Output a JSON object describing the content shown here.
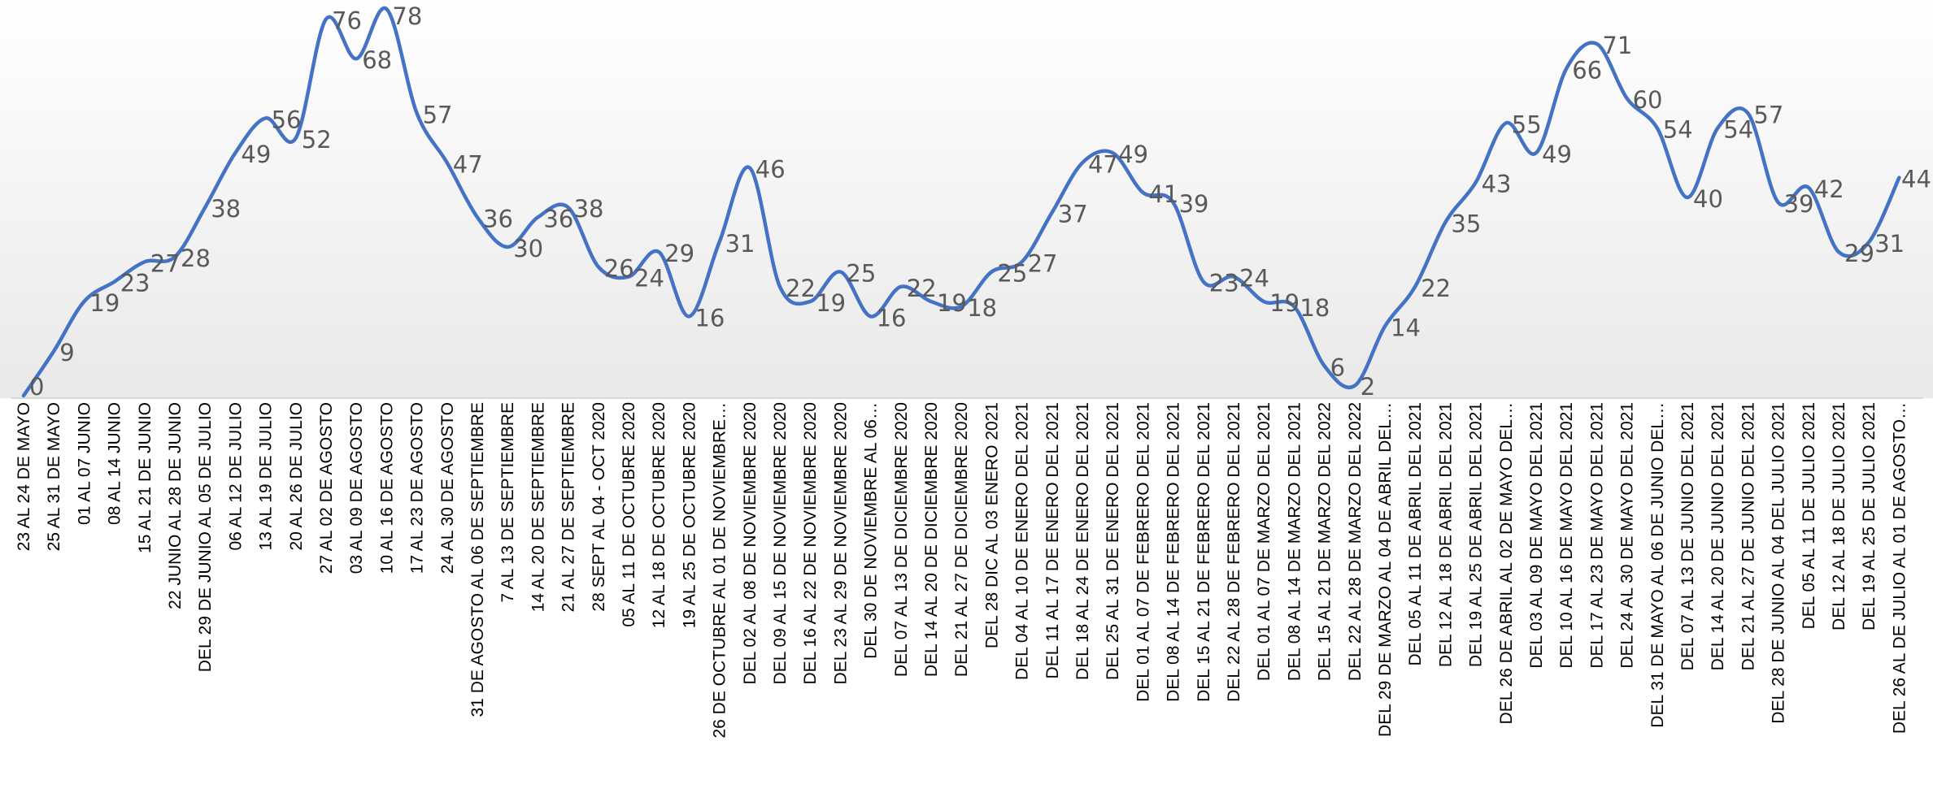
{
  "chart_data": {
    "type": "line",
    "title": "",
    "xlabel": "",
    "ylabel": "",
    "ylim": [
      0,
      80
    ],
    "grid": false,
    "legend": "none",
    "smooth": true,
    "colors": {
      "line": "#4472C4",
      "label": "#595959",
      "axis": "#d9d9d9",
      "bg_top": "#ffffff",
      "bg_bottom": "#e9e9e9"
    },
    "categories": [
      "23 AL 24 DE MAYO",
      "25 AL 31 DE MAYO",
      "01 AL 07 JUNIO",
      "08 AL 14 JUNIO",
      "15 AL 21 DE JUNIO",
      "22 JUNIO AL 28 DE JUNIO",
      "DEL 29 DE JUNIO AL 05 DE JULIO",
      "06 AL 12 DE JULIO",
      "13 AL 19 DE JULIO",
      "20 AL 26 DE JULIO",
      "27 AL 02 DE AGOSTO",
      "03 AL 09 DE AGOSTO",
      "10 AL 16 DE AGOSTO",
      "17 AL 23 DE AGOSTO",
      "24 AL 30 DE AGOSTO",
      "31 DE AGOSTO AL 06 DE SEPTIEMBRE",
      "7 AL 13 DE SEPTIEMBRE",
      "14 AL 20 DE SEPTIEMBRE",
      "21 AL 27 DE SEPTIEMBRE",
      "28 SEPT AL 04  - OCT 2020",
      "05  AL 11 DE OCTUBRE 2020",
      "12 AL 18 DE OCTUBRE 2020",
      "19 AL 25 DE OCTUBRE 2020",
      "26 DE OCTUBRE AL 01 DE NOVIEMBRE…",
      "DEL 02 AL 08 DE NOVIEMBRE 2020",
      "DEL 09 AL 15 DE NOVIEMBRE 2020",
      "DEL 16 AL 22 DE NOVIEMBRE 2020",
      "DEL 23 AL 29 DE NOVIEMBRE 2020",
      "DEL 30 DE NOVIEMBRE AL 06…",
      "DEL 07 AL 13 DE DICIEMBRE 2020",
      "DEL 14 AL 20 DE DICIEMBRE 2020",
      "DEL 21 AL 27 DE DICIEMBRE 2020",
      "DEL 28 DIC AL 03 ENERO 2021",
      "DEL 04 AL 10 DE ENERO DEL 2021",
      "DEL 11 AL 17 DE ENERO DEL 2021",
      "DEL 18 AL 24 DE ENERO DEL 2021",
      "DEL 25 AL 31 DE ENERO DEL 2021",
      "DEL 01 AL 07 DE FEBRERO DEL 2021",
      "DEL 08 AL 14 DE FEBRERO DEL 2021",
      "DEL 15 AL 21 DE FEBRERO DEL 2021",
      "DEL 22 AL 28 DE FEBRERO DEL 2021",
      "DEL 01 AL 07 DE MARZO DEL 2021",
      "DEL 08 AL 14 DE MARZO DEL 2021",
      "DEL 15 AL 21 DE MARZO DEL 2022",
      "DEL 22 AL 28 DE MARZO DEL 2022",
      "DEL 29 DE MARZO AL 04 DE ABRIL DEL…",
      "DEL 05 AL 11 DE ABRIL DEL 2021",
      "DEL 12 AL 18 DE ABRIL DEL 2021",
      "DEL 19 AL 25 DE ABRIL DEL 2021",
      "DEL 26 DE ABRIL AL 02 DE MAYO DEL…",
      "DEL 03 AL 09 DE MAYO DEL 2021",
      "DEL 10 AL 16 DE MAYO DEL 2021",
      "DEL 17 AL 23 DE MAYO DEL 2021",
      "DEL 24 AL 30 DE MAYO DEL 2021",
      "DEL 31 DE MAYO AL 06 DE JUNIO DEL…",
      "DEL 07 AL 13 DE JUNIO DEL 2021",
      "DEL 14 AL 20 DE JUNIO DEL 2021",
      "DEL 21 AL 27 DE JUNIO DEL 2021",
      "DEL 28 DE JUNIO AL 04 DEL JULIO 2021",
      "DEL 05 AL 11 DE JULIO 2021",
      "DEL 12 AL 18 DE JULIO 2021",
      "DEL 19 AL 25 DE JULIO 2021",
      "DEL 26 AL DE JULIO AL 01 DE AGOSTO…"
    ],
    "series": [
      {
        "values": [
          0,
          9,
          19,
          23,
          27,
          28,
          38,
          49,
          56,
          52,
          76,
          68,
          78,
          57,
          47,
          36,
          30,
          36,
          38,
          26,
          24,
          29,
          16,
          31,
          46,
          22,
          19,
          25,
          16,
          22,
          19,
          18,
          25,
          27,
          37,
          47,
          49,
          41,
          39,
          23,
          24,
          19,
          18,
          6,
          2,
          14,
          22,
          35,
          43,
          55,
          49,
          66,
          71,
          60,
          54,
          40,
          54,
          57,
          39,
          42,
          29,
          31,
          44
        ]
      }
    ]
  }
}
